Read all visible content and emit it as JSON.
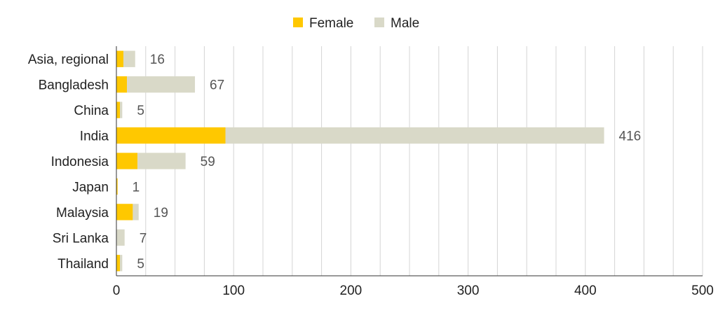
{
  "chart_data": {
    "type": "bar",
    "orientation": "horizontal",
    "stacked": true,
    "categories": [
      "Asia, regional",
      "Bangladesh",
      "China",
      "India",
      "Indonesia",
      "Japan",
      "Malaysia",
      "Sri Lanka",
      "Thailand"
    ],
    "series": [
      {
        "name": "Female",
        "color": "#FFC800",
        "values": [
          6,
          9,
          3,
          93,
          18,
          1,
          14,
          0,
          3
        ]
      },
      {
        "name": "Male",
        "color": "#D9D9C8",
        "values": [
          10,
          58,
          2,
          323,
          41,
          0,
          5,
          7,
          2
        ]
      }
    ],
    "totals": [
      "16",
      "67",
      "5",
      "416",
      "59",
      "1",
      "19",
      "7",
      "5"
    ],
    "x_ticks": [
      "0",
      "100",
      "200",
      "300",
      "400",
      "500"
    ],
    "xlim": [
      0,
      500
    ],
    "grid": true,
    "legend_position": "top-center"
  }
}
